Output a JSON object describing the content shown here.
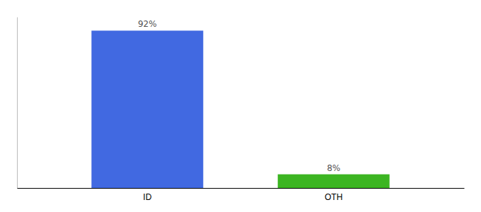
{
  "chart_data": {
    "type": "bar",
    "categories": [
      "ID",
      "OTH"
    ],
    "values": [
      92,
      8
    ],
    "value_labels": [
      "92%",
      "8%"
    ],
    "colors": [
      "#4169e1",
      "#3cb522"
    ],
    "ylim": [
      0,
      100
    ],
    "data_labels": true,
    "tick_labels": "x",
    "grid": false
  }
}
